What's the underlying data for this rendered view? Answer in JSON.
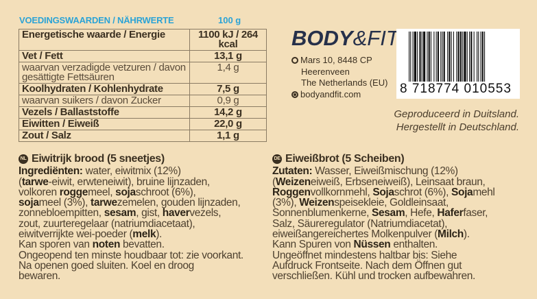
{
  "nutrition": {
    "title": "VOEDINGSWAARDEN / NÄHRWERTE",
    "per": "100 g",
    "rows": [
      {
        "label": "Energetische waarde / Energie",
        "value": "1100 kJ / 264 kcal",
        "sub": false
      },
      {
        "label": "Vet / Fett",
        "value": "13,1 g",
        "sub": false
      },
      {
        "label": "waarvan verzadigde vetzuren / davon gesättigte Fettsäuren",
        "value": "1,4 g",
        "sub": true
      },
      {
        "label": "Koolhydraten / Kohlenhydrate",
        "value": "7,5 g",
        "sub": false
      },
      {
        "label": "waarvan suikers / davon Zucker",
        "value": "0,9 g",
        "sub": true
      },
      {
        "label": "Vezels / Ballaststoffe",
        "value": "14,2 g",
        "sub": false
      },
      {
        "label": "Eiwitten / Eiweiß",
        "value": "22,0 g",
        "sub": false
      },
      {
        "label": "Zout / Salz",
        "value": "1,1 g",
        "sub": false
      }
    ]
  },
  "brand": {
    "logo_text": "BODY&FIT",
    "address_lines": [
      "Mars 10, 8448 CP",
      "Heerenveen",
      "The Netherlands (EU)"
    ],
    "website": "bodyandfit.com",
    "icons": [
      "location-pin-icon",
      "globe-icon"
    ]
  },
  "barcode": {
    "number": "8 718774 010553"
  },
  "made_in": [
    "Geproduceerd in Duitsland.",
    "Hergestellt in Deutschland."
  ],
  "nl": {
    "badge": "NL",
    "title": "Eiwitrijk brood (5 sneetjes)",
    "lines": [
      [
        {
          "t": "Ingrediënten:",
          "b": true
        },
        {
          "t": " water, eiwitmix (12%)",
          "b": false
        }
      ],
      [
        {
          "t": "(",
          "b": false
        },
        {
          "t": "tarwe",
          "b": true
        },
        {
          "t": "-eiwit, erwteneiwit), bruine lijnzaden,",
          "b": false
        }
      ],
      [
        {
          "t": "volkoren ",
          "b": false
        },
        {
          "t": "rogge",
          "b": true
        },
        {
          "t": "meel, ",
          "b": false
        },
        {
          "t": "soja",
          "b": true
        },
        {
          "t": "schroot (6%),",
          "b": false
        }
      ],
      [
        {
          "t": "soja",
          "b": true
        },
        {
          "t": "meel (3%), ",
          "b": false
        },
        {
          "t": "tarwe",
          "b": true
        },
        {
          "t": "zemelen, gouden lijnzaden,",
          "b": false
        }
      ],
      [
        {
          "t": "zonnebloempitten, ",
          "b": false
        },
        {
          "t": "sesam",
          "b": true
        },
        {
          "t": ", gist, ",
          "b": false
        },
        {
          "t": "haver",
          "b": true
        },
        {
          "t": "vezels,",
          "b": false
        }
      ],
      [
        {
          "t": "zout, zuurteregelaar (natriumdiacetaat),",
          "b": false
        }
      ],
      [
        {
          "t": "eiwitverrijkte wei-poeder (",
          "b": false
        },
        {
          "t": "melk",
          "b": true
        },
        {
          "t": ").",
          "b": false
        }
      ],
      [
        {
          "t": "Kan sporen van ",
          "b": false
        },
        {
          "t": "noten",
          "b": true
        },
        {
          "t": " bevatten.",
          "b": false
        }
      ],
      [
        {
          "t": "Ongeopend ten minste houdbaar tot: zie voorkant.",
          "b": false
        }
      ],
      [
        {
          "t": "Na openen goed sluiten. Koel en droog",
          "b": false
        }
      ],
      [
        {
          "t": "bewaren.",
          "b": false
        }
      ]
    ]
  },
  "de": {
    "badge": "DE",
    "title": "Eiweißbrot (5 Scheiben)",
    "lines": [
      [
        {
          "t": "Zutaten:",
          "b": true
        },
        {
          "t": " Wasser, Eiweißmischung (12%)",
          "b": false
        }
      ],
      [
        {
          "t": "(",
          "b": false
        },
        {
          "t": "Weizen",
          "b": true
        },
        {
          "t": "eiweiß, Erbseneiweiß), Leinsaat braun,",
          "b": false
        }
      ],
      [
        {
          "t": "Roggen",
          "b": true
        },
        {
          "t": "vollkornmehl, ",
          "b": false
        },
        {
          "t": "Soja",
          "b": true
        },
        {
          "t": "schrot (6%), ",
          "b": false
        },
        {
          "t": "Soja",
          "b": true
        },
        {
          "t": "mehl",
          "b": false
        }
      ],
      [
        {
          "t": "(3%), ",
          "b": false
        },
        {
          "t": "Weizen",
          "b": true
        },
        {
          "t": "speisekleie, Goldleinsaat,",
          "b": false
        }
      ],
      [
        {
          "t": "Sonnenblumenkerne, ",
          "b": false
        },
        {
          "t": "Sesam",
          "b": true
        },
        {
          "t": ", Hefe, ",
          "b": false
        },
        {
          "t": "Hafer",
          "b": true
        },
        {
          "t": "faser,",
          "b": false
        }
      ],
      [
        {
          "t": "Salz, Säureregulator (Natriumdiacetat),",
          "b": false
        }
      ],
      [
        {
          "t": "eiweißangereichertes Molkenpulver (",
          "b": false
        },
        {
          "t": "Milch",
          "b": true
        },
        {
          "t": ").",
          "b": false
        }
      ],
      [
        {
          "t": "Kann Spuren von ",
          "b": false
        },
        {
          "t": "Nüssen",
          "b": true
        },
        {
          "t": " enthalten.",
          "b": false
        }
      ],
      [
        {
          "t": "Ungeöffnet mindestens haltbar bis: Siehe",
          "b": false
        }
      ],
      [
        {
          "t": "Aufdruck Frontseite. Nach dem Öffnen gut",
          "b": false
        }
      ],
      [
        {
          "t": "verschließen. Kühl und trocken aufbewahren.",
          "b": false
        }
      ]
    ]
  },
  "colors": {
    "background": "#f3dfba",
    "accent_blue": "#2ba3d6",
    "text": "#3b3021",
    "logo": "#26304a"
  }
}
